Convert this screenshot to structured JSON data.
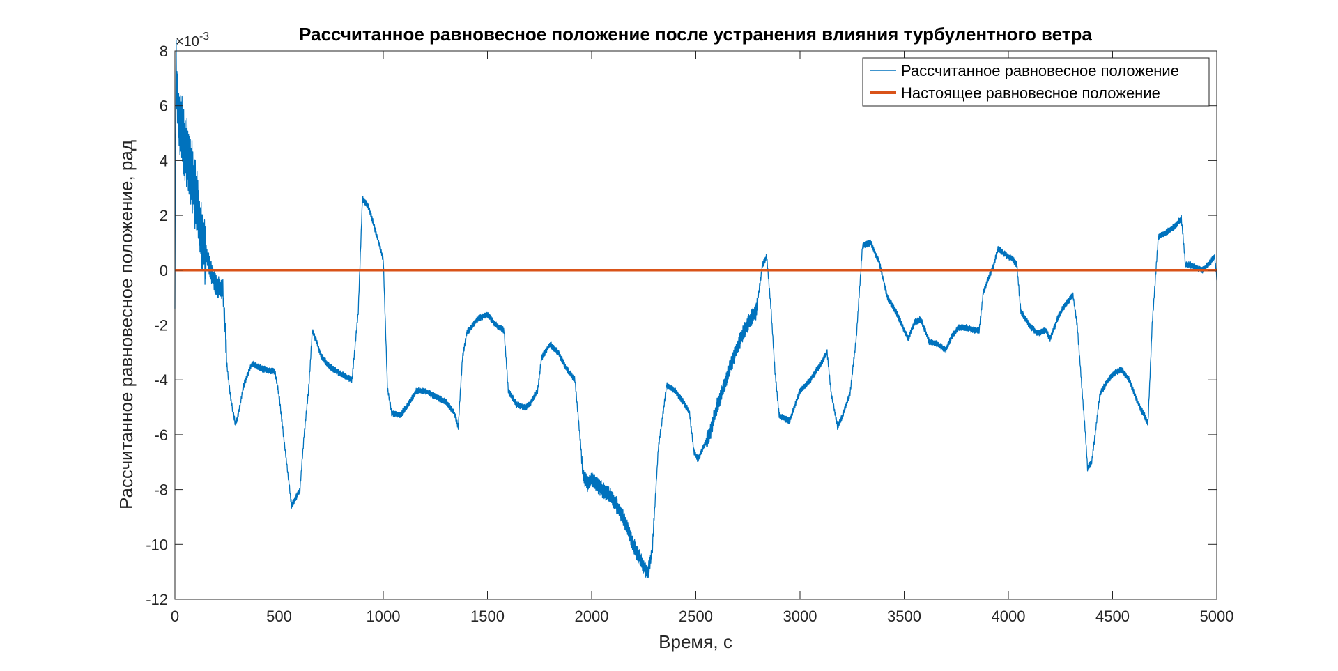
{
  "chart_data": {
    "type": "line",
    "title": "Рассчитанное равновесное положение после устранения влияния турбулентного ветра",
    "xlabel": "Время, с",
    "ylabel": "Рассчитанное равновесное положение, рад",
    "y_exponent_label": "×10",
    "y_exponent_power": "-3",
    "xlim": [
      0,
      5000
    ],
    "ylim": [
      -12,
      8
    ],
    "x_ticks": [
      "0",
      "500",
      "1000",
      "1500",
      "2000",
      "2500",
      "3000",
      "3500",
      "4000",
      "4500",
      "5000"
    ],
    "y_ticks": [
      "8",
      "6",
      "4",
      "2",
      "0",
      "-2",
      "-4",
      "-6",
      "-8",
      "-10",
      "-12"
    ],
    "y_scale_factor": 0.001,
    "grid": false,
    "legend_position": "top-right",
    "series": [
      {
        "name": "Рассчитанное равновесное положение",
        "color": "#0072BD",
        "noisy": true,
        "x": [
          0,
          5,
          10,
          20,
          40,
          60,
          80,
          100,
          120,
          150,
          180,
          200,
          230,
          240,
          250,
          270,
          290,
          300,
          330,
          370,
          420,
          480,
          500,
          540,
          560,
          600,
          620,
          640,
          660,
          680,
          700,
          740,
          800,
          850,
          880,
          900,
          930,
          960,
          1000,
          1020,
          1040,
          1080,
          1120,
          1160,
          1200,
          1250,
          1300,
          1340,
          1360,
          1380,
          1400,
          1450,
          1500,
          1540,
          1580,
          1600,
          1640,
          1680,
          1700,
          1740,
          1760,
          1800,
          1840,
          1880,
          1920,
          1960,
          1980,
          1990,
          2000,
          2050,
          2100,
          2150,
          2200,
          2250,
          2270,
          2290,
          2320,
          2360,
          2400,
          2440,
          2470,
          2490,
          2510,
          2540,
          2570,
          2600,
          2640,
          2680,
          2720,
          2760,
          2790,
          2820,
          2840,
          2860,
          2880,
          2900,
          2950,
          3000,
          3050,
          3100,
          3130,
          3150,
          3180,
          3200,
          3240,
          3270,
          3300,
          3340,
          3380,
          3420,
          3460,
          3490,
          3500,
          3520,
          3550,
          3580,
          3620,
          3660,
          3700,
          3730,
          3760,
          3800,
          3840,
          3860,
          3880,
          3900,
          3930,
          3950,
          3980,
          4020,
          4030,
          4040,
          4060,
          4100,
          4140,
          4180,
          4200,
          4240,
          4260,
          4280,
          4300,
          4310,
          4330,
          4350,
          4370,
          4380,
          4400,
          4440,
          4480,
          4500,
          4540,
          4580,
          4600,
          4630,
          4660,
          4670,
          4690,
          4710,
          4720,
          4760,
          4800,
          4830,
          4850,
          4870,
          4900,
          4930,
          4960,
          4990,
          5000
        ],
        "y": [
          0,
          7.5,
          6.5,
          5.5,
          4.8,
          4.2,
          3.6,
          2.6,
          1.6,
          0.6,
          -0.2,
          -0.6,
          -0.7,
          -2.0,
          -3.5,
          -4.8,
          -5.6,
          -5.4,
          -4.2,
          -3.4,
          -3.6,
          -3.7,
          -4.6,
          -7.3,
          -8.6,
          -8.0,
          -6.0,
          -4.5,
          -2.2,
          -2.6,
          -3.1,
          -3.5,
          -3.8,
          -4.0,
          -1.5,
          2.6,
          2.3,
          1.5,
          0.4,
          -4.3,
          -5.2,
          -5.3,
          -4.9,
          -4.4,
          -4.4,
          -4.6,
          -4.8,
          -5.2,
          -5.7,
          -3.2,
          -2.3,
          -1.8,
          -1.6,
          -2.0,
          -2.2,
          -4.4,
          -4.9,
          -5.0,
          -4.9,
          -4.4,
          -3.2,
          -2.7,
          -3.0,
          -3.6,
          -4.0,
          -7.5,
          -7.8,
          -7.7,
          -7.6,
          -8.0,
          -8.3,
          -9.0,
          -10.0,
          -10.8,
          -11.0,
          -10.3,
          -6.5,
          -4.2,
          -4.4,
          -4.8,
          -5.2,
          -6.6,
          -6.9,
          -6.4,
          -5.9,
          -5.0,
          -4.1,
          -3.2,
          -2.4,
          -1.8,
          -1.5,
          0.2,
          0.5,
          -1.3,
          -3.7,
          -5.3,
          -5.5,
          -4.4,
          -4.0,
          -3.4,
          -3.0,
          -4.5,
          -5.7,
          -5.4,
          -4.5,
          -2.5,
          0.9,
          1.0,
          0.3,
          -1.0,
          -1.5,
          -2.0,
          -2.2,
          -2.5,
          -1.9,
          -1.8,
          -2.6,
          -2.7,
          -2.9,
          -2.4,
          -2.1,
          -2.1,
          -2.2,
          -2.2,
          -0.8,
          -0.4,
          0.2,
          0.8,
          0.6,
          0.4,
          0.3,
          0.2,
          -1.5,
          -2.0,
          -2.3,
          -2.2,
          -2.5,
          -1.7,
          -1.4,
          -1.2,
          -1.0,
          -0.9,
          -2.0,
          -4.0,
          -6.0,
          -7.2,
          -7.0,
          -4.5,
          -4.0,
          -3.8,
          -3.6,
          -4.0,
          -4.4,
          -5.0,
          -5.4,
          -5.6,
          -2.0,
          0.2,
          1.2,
          1.4,
          1.6,
          1.9,
          0.2,
          0.2,
          0.1,
          0.0,
          0.2,
          0.5,
          -0.3
        ]
      },
      {
        "name": "Настоящее равновесное положение",
        "color": "#D95319",
        "noisy": false,
        "x": [
          0,
          5000
        ],
        "y": [
          0,
          0
        ]
      }
    ]
  }
}
